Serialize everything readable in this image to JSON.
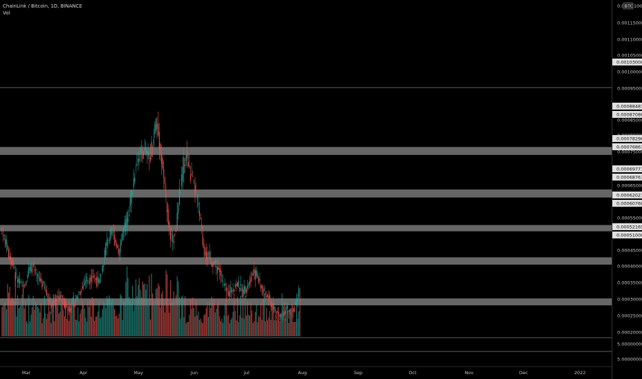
{
  "header": {
    "symbol_line": "ChainLink / Bitcoin, 1D, BINANCE",
    "volume_label": "Vol"
  },
  "colors": {
    "background": "#000000",
    "up": "#26a69a",
    "down": "#ef5350",
    "zone": "#787878",
    "axis_text": "#c8c8c8"
  },
  "chart_data": {
    "type": "candlestick",
    "currency_badge": "BTC",
    "y_scale": "linear",
    "ylim": [
      0.00043,
      0.00124
    ],
    "price_ticks": [
      "0.00115000",
      "0.00110000",
      "0.00105000",
      "0.00100000",
      "0.00095000",
      "0.00085000",
      "0.00080000",
      "0.00075000",
      "0.00070000",
      "0.00065000",
      "0.00055000",
      "0.00050000",
      "0.00045000",
      "0.00040000",
      "0.00035000",
      "0.00030000",
      "0.00025000",
      "0.00020000"
    ],
    "top_tick": "0.0",
    "top_tick_suffix": "100",
    "volume_axis_ticks": [
      "5.00000000",
      "5.00000000"
    ],
    "x_axis_labels": [
      "Mar",
      "Apr",
      "May",
      "Jun",
      "Jul",
      "Aug",
      "Sep",
      "Oct",
      "Nov",
      "Dec",
      "2022"
    ],
    "highlighted_prices": [
      "0.00103000",
      "0.00088487",
      "0.00087086",
      "0.00078296",
      "0.00076867",
      "0.00069771",
      "0.00068761",
      "0.00062027",
      "0.00060768",
      "0.00052165",
      "0.00051000"
    ],
    "resistance_zones": [
      {
        "top": 0.00088487,
        "bottom": 0.00087086
      },
      {
        "top": 0.00078296,
        "bottom": 0.00076867
      },
      {
        "top": 0.00069771,
        "bottom": 0.00068761
      },
      {
        "top": 0.00062027,
        "bottom": 0.00060768
      },
      {
        "top": 0.00052165,
        "bottom": 0.00051
      }
    ],
    "horizontal_line": 0.00103,
    "series": [
      {
        "name": "price",
        "anchors": [
          [
            0,
            0.00068
          ],
          [
            3,
            0.00066
          ],
          [
            6,
            0.00063
          ],
          [
            9,
            0.00061
          ],
          [
            12,
            0.00058
          ],
          [
            15,
            0.00056
          ],
          [
            18,
            0.00055
          ],
          [
            21,
            0.00057
          ],
          [
            24,
            0.00059
          ],
          [
            27,
            0.0006
          ],
          [
            30,
            0.00058
          ],
          [
            33,
            0.00057
          ],
          [
            36,
            0.00056
          ],
          [
            39,
            0.00054
          ],
          [
            42,
            0.00052
          ],
          [
            45,
            0.00051
          ],
          [
            48,
            0.00052
          ],
          [
            51,
            0.00053
          ],
          [
            54,
            0.00052
          ],
          [
            57,
            0.00051
          ],
          [
            60,
            0.0005
          ],
          [
            63,
            0.00051
          ],
          [
            66,
            0.00052
          ],
          [
            69,
            0.00054
          ],
          [
            72,
            0.00055
          ],
          [
            75,
            0.00057
          ],
          [
            78,
            0.00057
          ],
          [
            81,
            0.00058
          ],
          [
            84,
            0.00057
          ],
          [
            87,
            0.00056
          ],
          [
            90,
            0.0006
          ],
          [
            93,
            0.00065
          ],
          [
            96,
            0.00067
          ],
          [
            99,
            0.00068
          ],
          [
            102,
            0.00066
          ],
          [
            105,
            0.00064
          ],
          [
            108,
            0.00068
          ],
          [
            111,
            0.0007
          ],
          [
            114,
            0.00074
          ],
          [
            117,
            0.00079
          ],
          [
            120,
            0.00085
          ],
          [
            123,
            0.00087
          ],
          [
            126,
            0.00088
          ],
          [
            129,
            0.00087
          ],
          [
            132,
            0.00086
          ],
          [
            135,
            0.0009
          ],
          [
            138,
            0.00095
          ],
          [
            141,
            0.0009
          ],
          [
            144,
            0.00084
          ],
          [
            147,
            0.00076
          ],
          [
            150,
            0.00068
          ],
          [
            153,
            0.00066
          ],
          [
            156,
            0.0007
          ],
          [
            159,
            0.00077
          ],
          [
            162,
            0.00083
          ],
          [
            165,
            0.00087
          ],
          [
            168,
            0.00083
          ],
          [
            171,
            0.0008
          ],
          [
            174,
            0.00077
          ],
          [
            177,
            0.00072
          ],
          [
            180,
            0.00066
          ],
          [
            183,
            0.00063
          ],
          [
            186,
            0.00062
          ],
          [
            189,
            0.00061
          ],
          [
            192,
            0.0006
          ],
          [
            195,
            0.00059
          ],
          [
            198,
            0.00056
          ],
          [
            201,
            0.00054
          ],
          [
            204,
            0.00054
          ],
          [
            207,
            0.00055
          ],
          [
            210,
            0.00056
          ],
          [
            213,
            0.00055
          ],
          [
            216,
            0.00054
          ],
          [
            219,
            0.00055
          ],
          [
            222,
            0.00057
          ],
          [
            225,
            0.00059
          ],
          [
            228,
            0.00058
          ],
          [
            231,
            0.00056
          ],
          [
            234,
            0.00054
          ],
          [
            237,
            0.00053
          ],
          [
            240,
            0.00052
          ],
          [
            243,
            0.0005
          ],
          [
            246,
            0.00049
          ],
          [
            249,
            0.00048
          ],
          [
            252,
            0.00049
          ],
          [
            255,
            0.0005
          ],
          [
            258,
            0.00049
          ],
          [
            261,
            0.0005
          ],
          [
            264,
            0.00051
          ],
          [
            267,
            0.00055
          ]
        ]
      },
      {
        "name": "volume",
        "relative": true
      }
    ]
  }
}
